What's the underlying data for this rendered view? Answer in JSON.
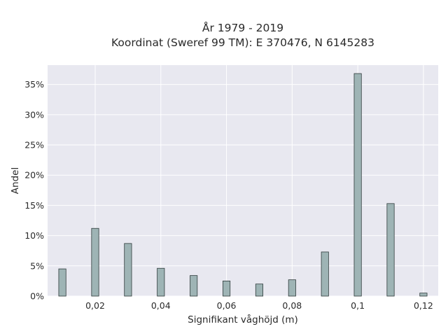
{
  "chart_data": {
    "type": "bar",
    "title_lines": [
      "År 1979 - 2019",
      "Koordinat (Sweref 99 TM): E 370476, N 6145283"
    ],
    "xlabel": "Signifikant våghöjd (m)",
    "ylabel": "Andel",
    "x": [
      0.01,
      0.02,
      0.03,
      0.04,
      0.05,
      0.06,
      0.07,
      0.08,
      0.09,
      0.1,
      0.11,
      0.12
    ],
    "values": [
      4.5,
      11.2,
      8.7,
      4.6,
      3.4,
      2.5,
      2.0,
      2.7,
      7.3,
      36.8,
      15.3,
      0.5
    ],
    "xlim": [
      0.0055,
      0.1245
    ],
    "ylim": [
      0,
      38.2
    ],
    "x_ticks": [
      0.02,
      0.04,
      0.06,
      0.08,
      0.1,
      0.12
    ],
    "x_tick_labels": [
      "0,02",
      "0,04",
      "0,06",
      "0,08",
      "0,1",
      "0,12"
    ],
    "y_ticks": [
      0,
      5,
      10,
      15,
      20,
      25,
      30,
      35
    ],
    "y_tick_labels": [
      "0%",
      "5%",
      "10%",
      "15%",
      "20%",
      "25%",
      "30%",
      "35%"
    ],
    "grid": true,
    "colors": {
      "bar_fill": "#9eb4b5",
      "bar_edge": "#2f3b3b",
      "plot_bg": "#e8e8f0",
      "grid": "#ffffff"
    }
  }
}
